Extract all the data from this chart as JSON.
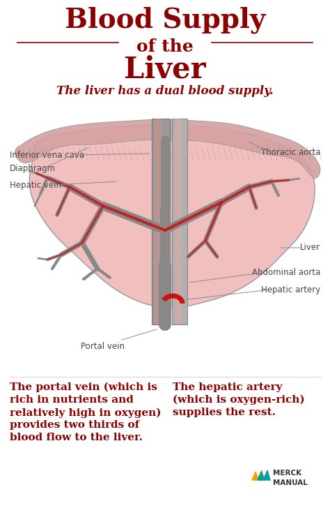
{
  "bg_color": "#ffffff",
  "title_line1": "Blood Supply",
  "title_line2": "of the",
  "title_line3": "Liver",
  "title_color": "#8B0000",
  "subtitle": "The liver has a dual blood supply.",
  "subtitle_color": "#8B0000",
  "label_color": "#444444",
  "text_left": "The portal vein (which is\nrich in nutrients and\nrelatively high in oxygen)\nprovides two thirds of\nblood flow to the liver.",
  "text_right": "The hepatic artery\n(which is oxygen-rich)\nsupplies the rest.",
  "text_color": "#8B0000",
  "line_color": "#8B0000",
  "liver_fill": "#F2BFBF",
  "liver_outline": "#999999",
  "vessel_gray": "#888888",
  "vessel_pink": "#D4909090",
  "vessel_red": "#CC1111",
  "diaphragm_fill": "#D4A0A0",
  "diaphragm_stripe": "#C49090",
  "ivc_fill": "#AAAAAA",
  "aorta_fill": "#BBBBBB",
  "pink_vessel_fill": "#E8A8A8"
}
